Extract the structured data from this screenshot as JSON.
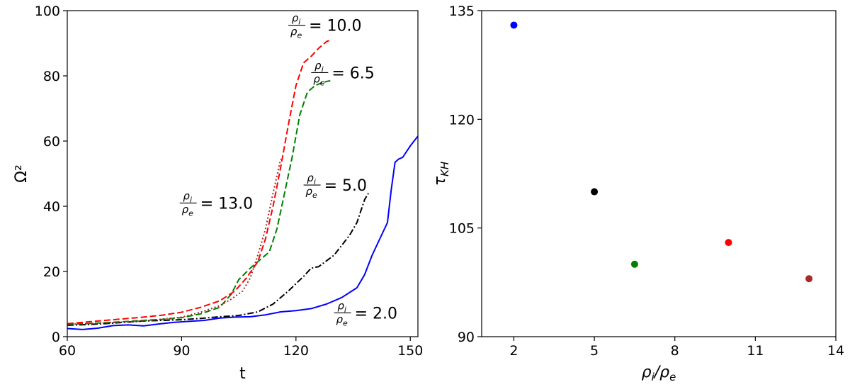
{
  "chart_data": [
    {
      "type": "line",
      "title": "",
      "xlabel": "t",
      "ylabel": "Ω²",
      "xlim": [
        60,
        152
      ],
      "ylim": [
        0,
        100
      ],
      "xticks": [
        "60",
        "90",
        "120",
        "150"
      ],
      "yticks": [
        "0",
        "20",
        "40",
        "60",
        "80",
        "100"
      ],
      "grid": false,
      "series": [
        {
          "name": "2.0",
          "color": "#0000ff",
          "style": "solid",
          "x": [
            60,
            64,
            68,
            72,
            76,
            80,
            84,
            88,
            92,
            96,
            100,
            104,
            108,
            112,
            116,
            120,
            124,
            128,
            132,
            136,
            138,
            140,
            142,
            144,
            145,
            146,
            147,
            148,
            150,
            152
          ],
          "y": [
            2.5,
            2.2,
            2.6,
            3.4,
            3.6,
            3.3,
            3.9,
            4.4,
            4.7,
            5.0,
            5.7,
            6.0,
            6.1,
            6.7,
            7.6,
            8.0,
            8.6,
            10.0,
            12.0,
            15.0,
            19.0,
            25.0,
            30.0,
            35.0,
            45.0,
            53.5,
            54.5,
            55.0,
            58.5,
            61.5
          ]
        },
        {
          "name": "5.0",
          "color": "#000000",
          "style": "dashdot",
          "x": [
            60,
            65,
            70,
            75,
            80,
            85,
            90,
            95,
            100,
            105,
            110,
            114,
            118,
            122,
            124,
            126,
            130,
            134,
            136,
            138,
            139
          ],
          "y": [
            3.5,
            3.7,
            4.0,
            4.4,
            4.8,
            5.0,
            5.2,
            5.6,
            6.1,
            6.5,
            7.6,
            10.0,
            14.0,
            18.5,
            21.0,
            21.5,
            25.0,
            31.0,
            35.0,
            42.0,
            44.0
          ]
        },
        {
          "name": "6.5",
          "color": "#008000",
          "style": "dashed",
          "x": [
            60,
            65,
            70,
            75,
            80,
            85,
            90,
            95,
            100,
            103,
            105,
            108,
            111,
            113,
            115,
            117,
            119,
            121,
            123,
            125,
            127,
            129
          ],
          "y": [
            3.8,
            4.0,
            4.3,
            4.6,
            5.0,
            5.3,
            5.8,
            7.0,
            9.0,
            13.0,
            17.5,
            21.0,
            24.0,
            26.0,
            33.0,
            44.0,
            55.0,
            68.0,
            75.0,
            77.0,
            78.0,
            78.5
          ]
        },
        {
          "name": "10.0",
          "color": "#ff0000",
          "style": "dashed",
          "x": [
            60,
            65,
            70,
            75,
            80,
            85,
            90,
            95,
            100,
            104,
            107,
            110,
            112,
            114,
            116,
            118,
            120,
            122,
            124,
            126,
            128,
            129
          ],
          "y": [
            4.0,
            4.5,
            5.0,
            5.5,
            6.0,
            6.6,
            7.5,
            9.0,
            11.0,
            14.0,
            18.0,
            23.0,
            30.0,
            40.0,
            52.0,
            65.0,
            77.0,
            84.0,
            86.0,
            88.5,
            90.5,
            91.0
          ]
        },
        {
          "name": "13.0",
          "color": "#a52a2a",
          "style": "dotted",
          "x": [
            60,
            70,
            80,
            90,
            95,
            100,
            103,
            106,
            108,
            110,
            112,
            114,
            116
          ],
          "y": [
            3.8,
            4.2,
            4.8,
            6.0,
            7.5,
            9.5,
            11.5,
            14.0,
            18.0,
            25.0,
            33.0,
            44.0,
            54.5
          ]
        }
      ],
      "annotations": [
        {
          "num": "ρ",
          "num_sub": "i",
          "den": "ρ",
          "den_sub": "e",
          "value": "= 10.0",
          "x": 118,
          "y": 95.5
        },
        {
          "num": "ρ",
          "num_sub": "i",
          "den": "ρ",
          "den_sub": "e",
          "value": "= 6.5",
          "x": 124,
          "y": 81
        },
        {
          "num": "ρ",
          "num_sub": "i",
          "den": "ρ",
          "den_sub": "e",
          "value": "= 5.0",
          "x": 122,
          "y": 46.5
        },
        {
          "num": "ρ",
          "num_sub": "i",
          "den": "ρ",
          "den_sub": "e",
          "value": "= 13.0",
          "x": 89.5,
          "y": 41
        },
        {
          "num": "ρ",
          "num_sub": "i",
          "den": "ρ",
          "den_sub": "e",
          "value": "= 2.0",
          "x": 130,
          "y": 7.3
        }
      ]
    },
    {
      "type": "scatter",
      "title": "",
      "xlabel": "ρi/ρe",
      "ylabel": "τKH",
      "xlim": [
        0.8,
        14
      ],
      "ylim": [
        90,
        135
      ],
      "xticks": [
        "2",
        "5",
        "8",
        "11",
        "14"
      ],
      "yticks": [
        "90",
        "105",
        "120",
        "135"
      ],
      "grid": false,
      "points": [
        {
          "x": 2.0,
          "y": 133,
          "color": "#0000ff"
        },
        {
          "x": 5.0,
          "y": 110,
          "color": "#000000"
        },
        {
          "x": 6.5,
          "y": 100,
          "color": "#008000"
        },
        {
          "x": 10.0,
          "y": 103,
          "color": "#ff0000"
        },
        {
          "x": 13.0,
          "y": 98,
          "color": "#a52a2a"
        }
      ]
    }
  ]
}
